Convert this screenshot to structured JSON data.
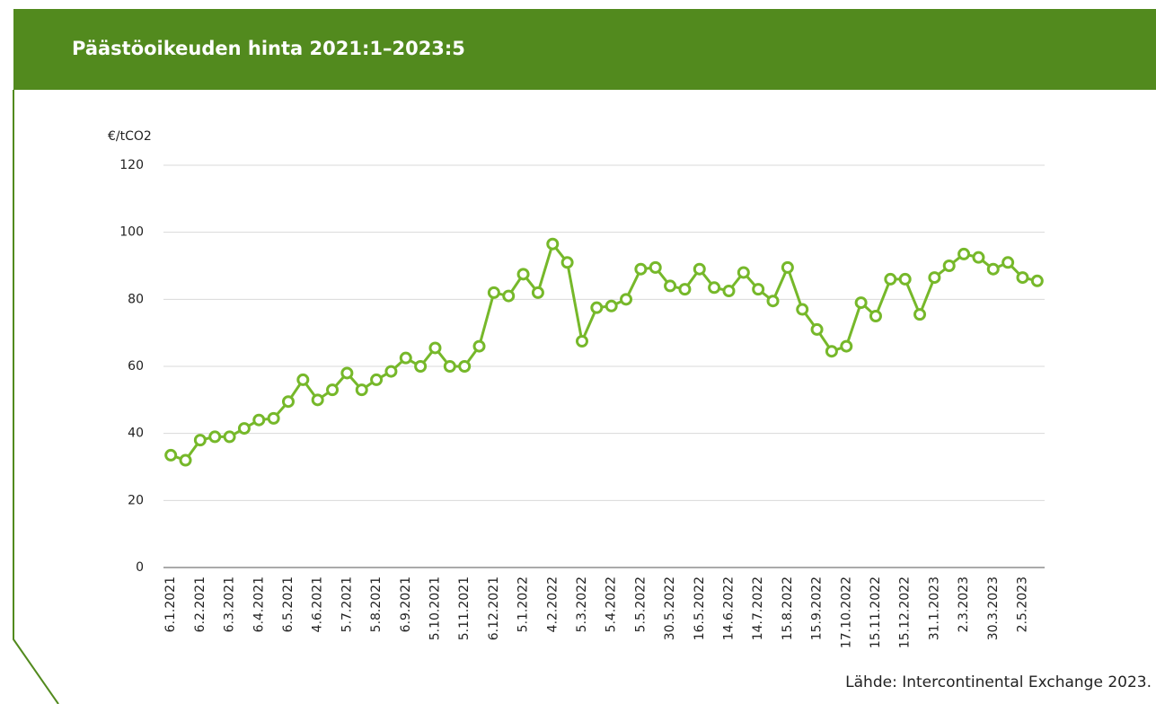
{
  "chart_data": {
    "type": "line",
    "title": "Päästöoikeuden hinta 2021:1–2023:5",
    "y_label": "€/tCO2",
    "source": "Lähde: Intercontinental Exchange 2023.",
    "categories": [
      "6.1.2021",
      null,
      "6.2.2021",
      null,
      "6.3.2021",
      null,
      "6.4.2021",
      null,
      "6.5.2021",
      null,
      "4.6.2021",
      null,
      "5.7.2021",
      null,
      "5.8.2021",
      null,
      "6.9.2021",
      null,
      "5.10.2021",
      null,
      "5.11.2021",
      null,
      "6.12.2021",
      null,
      "5.1.2022",
      null,
      "4.2.2022",
      null,
      "5.3.2022",
      null,
      "5.4.2022",
      null,
      "5.5.2022",
      null,
      "30.5.2022",
      null,
      "16.5.2022",
      null,
      "14.6.2022",
      null,
      "14.7.2022",
      null,
      "15.8.2022",
      null,
      "15.9.2022",
      null,
      "17.10.2022",
      null,
      "15.11.2022",
      null,
      "15.12.2022",
      null,
      "31.1.2023",
      null,
      "2.3.2023",
      null,
      "30.3.2023",
      null,
      "2.5.2023",
      null
    ],
    "series": [
      {
        "name": "Päästöoikeuden hinta",
        "color": "#76b82a",
        "values": [
          33.5,
          32,
          38,
          39,
          39,
          41.5,
          44,
          44.5,
          49.5,
          56,
          50,
          53,
          58,
          53,
          56,
          58.5,
          62.5,
          60,
          65.5,
          60,
          60,
          66,
          82,
          81,
          87.5,
          82,
          96.5,
          91,
          67.5,
          77.5,
          78,
          80,
          89,
          89.5,
          84,
          83,
          89,
          83.5,
          82.5,
          88,
          83,
          79.5,
          89.5,
          77,
          71,
          64.5,
          66,
          79,
          75,
          86,
          86,
          75.5,
          86.5,
          90,
          93.5,
          92.5,
          89,
          91,
          86.5,
          85.5
        ]
      }
    ],
    "ylim": [
      0,
      120
    ],
    "yticks": [
      0,
      20,
      40,
      60,
      80,
      100,
      120
    ],
    "grid": true
  }
}
